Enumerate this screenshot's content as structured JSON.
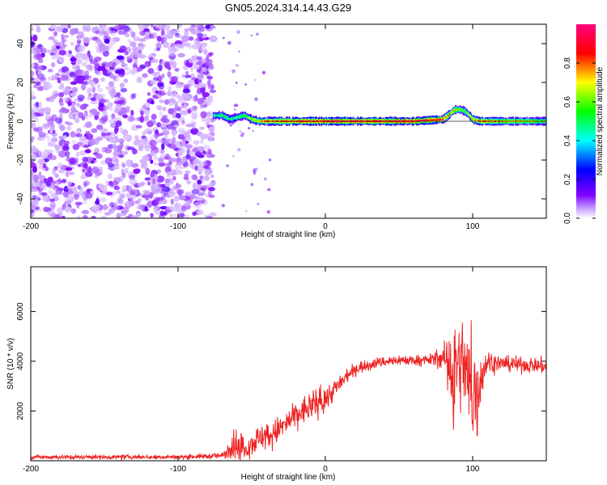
{
  "title": "GN05.2024.314.14.43.G29",
  "chart_data": [
    {
      "type": "heatmap",
      "xlabel": "Height of straight line (km)",
      "ylabel": "Frequency (Hz)",
      "xlim": [
        -200,
        150
      ],
      "ylim": [
        -50,
        50
      ],
      "xticks": [
        -200,
        -100,
        0,
        100
      ],
      "yticks": [
        -40,
        -20,
        0,
        20,
        40
      ],
      "colorbar": {
        "label": "Normalized spectral amplitude",
        "range": [
          0,
          1
        ],
        "ticks": [
          "0.0",
          "0.2",
          "0.4",
          "0.6",
          "0.8"
        ],
        "colors": [
          "#ffffff",
          "#a000ff",
          "#0000ff",
          "#00ffff",
          "#00ff00",
          "#ffff00",
          "#ff0000",
          "#ff0080"
        ]
      },
      "noise_region": {
        "x": [
          -200,
          -76
        ],
        "y": [
          -50,
          50
        ],
        "peak_amplitude": 0.1
      },
      "ridge": {
        "x": [
          -76,
          -70,
          -65,
          -60,
          -55,
          -50,
          -45,
          -40,
          -20,
          0,
          20,
          40,
          60,
          80,
          85,
          88,
          92,
          95,
          98,
          100,
          105,
          120,
          140,
          150
        ],
        "freq": [
          3,
          3,
          1,
          2,
          3,
          1,
          0,
          0,
          0,
          0,
          0,
          0,
          0,
          1,
          4,
          6,
          6,
          5,
          3,
          1,
          0,
          0,
          0,
          0
        ],
        "amplitude": [
          0.45,
          0.5,
          0.45,
          0.5,
          0.55,
          0.6,
          0.7,
          0.8,
          0.85,
          0.9,
          0.9,
          0.88,
          0.9,
          0.85,
          0.7,
          0.7,
          0.6,
          0.55,
          0.6,
          0.7,
          0.8,
          0.75,
          0.65,
          0.6
        ]
      }
    },
    {
      "type": "line",
      "xlabel": "Height of straight line (km)",
      "ylabel": "SNR (10 * v/v)",
      "xlim": [
        -200,
        150
      ],
      "ylim": [
        0,
        7800
      ],
      "xticks": [
        -200,
        -100,
        0,
        100
      ],
      "yticks": [
        2000,
        4000,
        6000
      ],
      "color": "#ee2222",
      "x": [
        -200,
        -100,
        -70,
        -62,
        -55,
        -45,
        -35,
        -20,
        -10,
        0,
        10,
        20,
        35,
        50,
        70,
        80,
        85,
        87,
        90,
        95,
        100,
        103,
        106,
        110,
        120,
        140,
        150
      ],
      "mean": [
        150,
        150,
        200,
        700,
        500,
        900,
        1100,
        1800,
        2200,
        2500,
        3100,
        3700,
        3950,
        4050,
        4050,
        4150,
        3900,
        3000,
        4000,
        3500,
        2500,
        2800,
        3500,
        4000,
        3900,
        3850,
        3800
      ],
      "noise": [
        70,
        70,
        100,
        500,
        400,
        450,
        450,
        450,
        500,
        450,
        300,
        220,
        180,
        180,
        180,
        350,
        1500,
        2500,
        1200,
        1800,
        2200,
        1800,
        900,
        400,
        250,
        250,
        300
      ]
    }
  ]
}
